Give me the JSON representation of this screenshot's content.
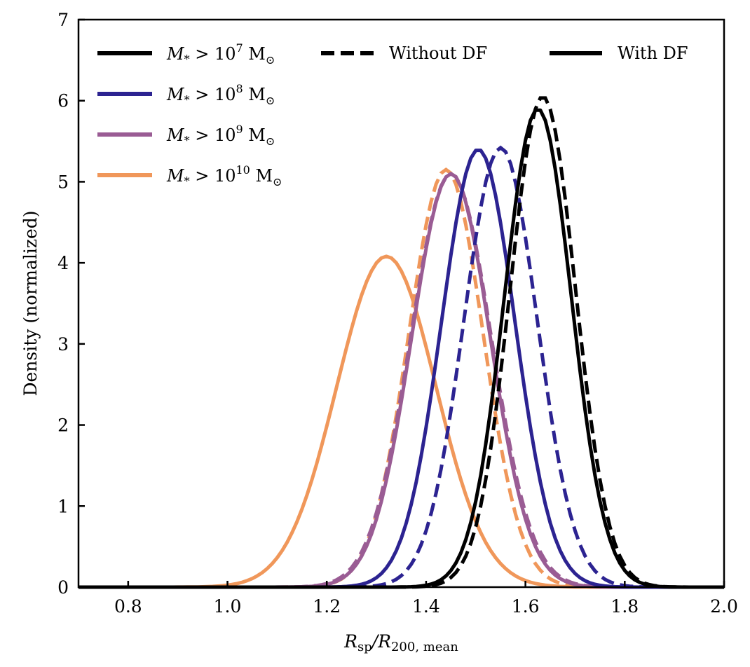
{
  "chart_data": {
    "type": "line",
    "title": "",
    "xlabel": {
      "main": "R",
      "sub1": "sp",
      "slash": "/R",
      "sub2": "200, mean"
    },
    "ylabel": "Density (normalized)",
    "xlim": [
      0.7,
      2.0
    ],
    "ylim": [
      0,
      7
    ],
    "xticks": [
      0.8,
      1.0,
      1.2,
      1.4,
      1.6,
      1.8,
      2.0
    ],
    "xtick_labels": [
      "0.8",
      "1.0",
      "1.2",
      "1.4",
      "1.6",
      "1.8",
      "2.0"
    ],
    "yticks": [
      0,
      1,
      2,
      3,
      4,
      5,
      6,
      7
    ],
    "ytick_labels": [
      "0",
      "1",
      "2",
      "3",
      "4",
      "5",
      "6",
      "7"
    ],
    "grid": false,
    "legend_placement": "top-left",
    "style_legend": [
      {
        "label": "Without DF",
        "dash": true
      },
      {
        "label": "With DF",
        "dash": false
      }
    ],
    "series": [
      {
        "key": "m7",
        "mass_label": {
          "prefix": "M",
          "star": "*",
          "gt": " > 10",
          "exp": "7",
          "unit": " M",
          "sun": "⊙"
        },
        "color": "#000000",
        "with_df": {
          "mu": 1.625,
          "sigma": 0.0675,
          "peak": 5.9
        },
        "without_df": {
          "mu": 1.635,
          "sigma": 0.066,
          "peak": 6.05
        }
      },
      {
        "key": "m8",
        "mass_label": {
          "prefix": "M",
          "star": "*",
          "gt": " > 10",
          "exp": "8",
          "unit": " M",
          "sun": "⊙"
        },
        "color": "#2c2391",
        "with_df": {
          "mu": 1.505,
          "sigma": 0.074,
          "peak": 5.4
        },
        "without_df": {
          "mu": 1.55,
          "sigma": 0.074,
          "peak": 5.42
        }
      },
      {
        "key": "m9",
        "mass_label": {
          "prefix": "M",
          "star": "*",
          "gt": " > 10",
          "exp": "9",
          "unit": " M",
          "sun": "⊙"
        },
        "color": "#9a5c94",
        "with_df": {
          "mu": 1.45,
          "sigma": 0.079,
          "peak": 5.1
        },
        "without_df": {
          "mu": 1.45,
          "sigma": 0.081,
          "peak": 5.1
        }
      },
      {
        "key": "m10",
        "mass_label": {
          "prefix": "M",
          "star": "*",
          "gt": " > 10",
          "exp": "10",
          "unit": " M",
          "sun": "⊙"
        },
        "color": "#f0975a",
        "with_df": {
          "mu": 1.32,
          "sigma": 0.1,
          "peak": 4.08
        },
        "without_df": {
          "mu": 1.44,
          "sigma": 0.075,
          "peak": 5.15
        }
      }
    ]
  }
}
